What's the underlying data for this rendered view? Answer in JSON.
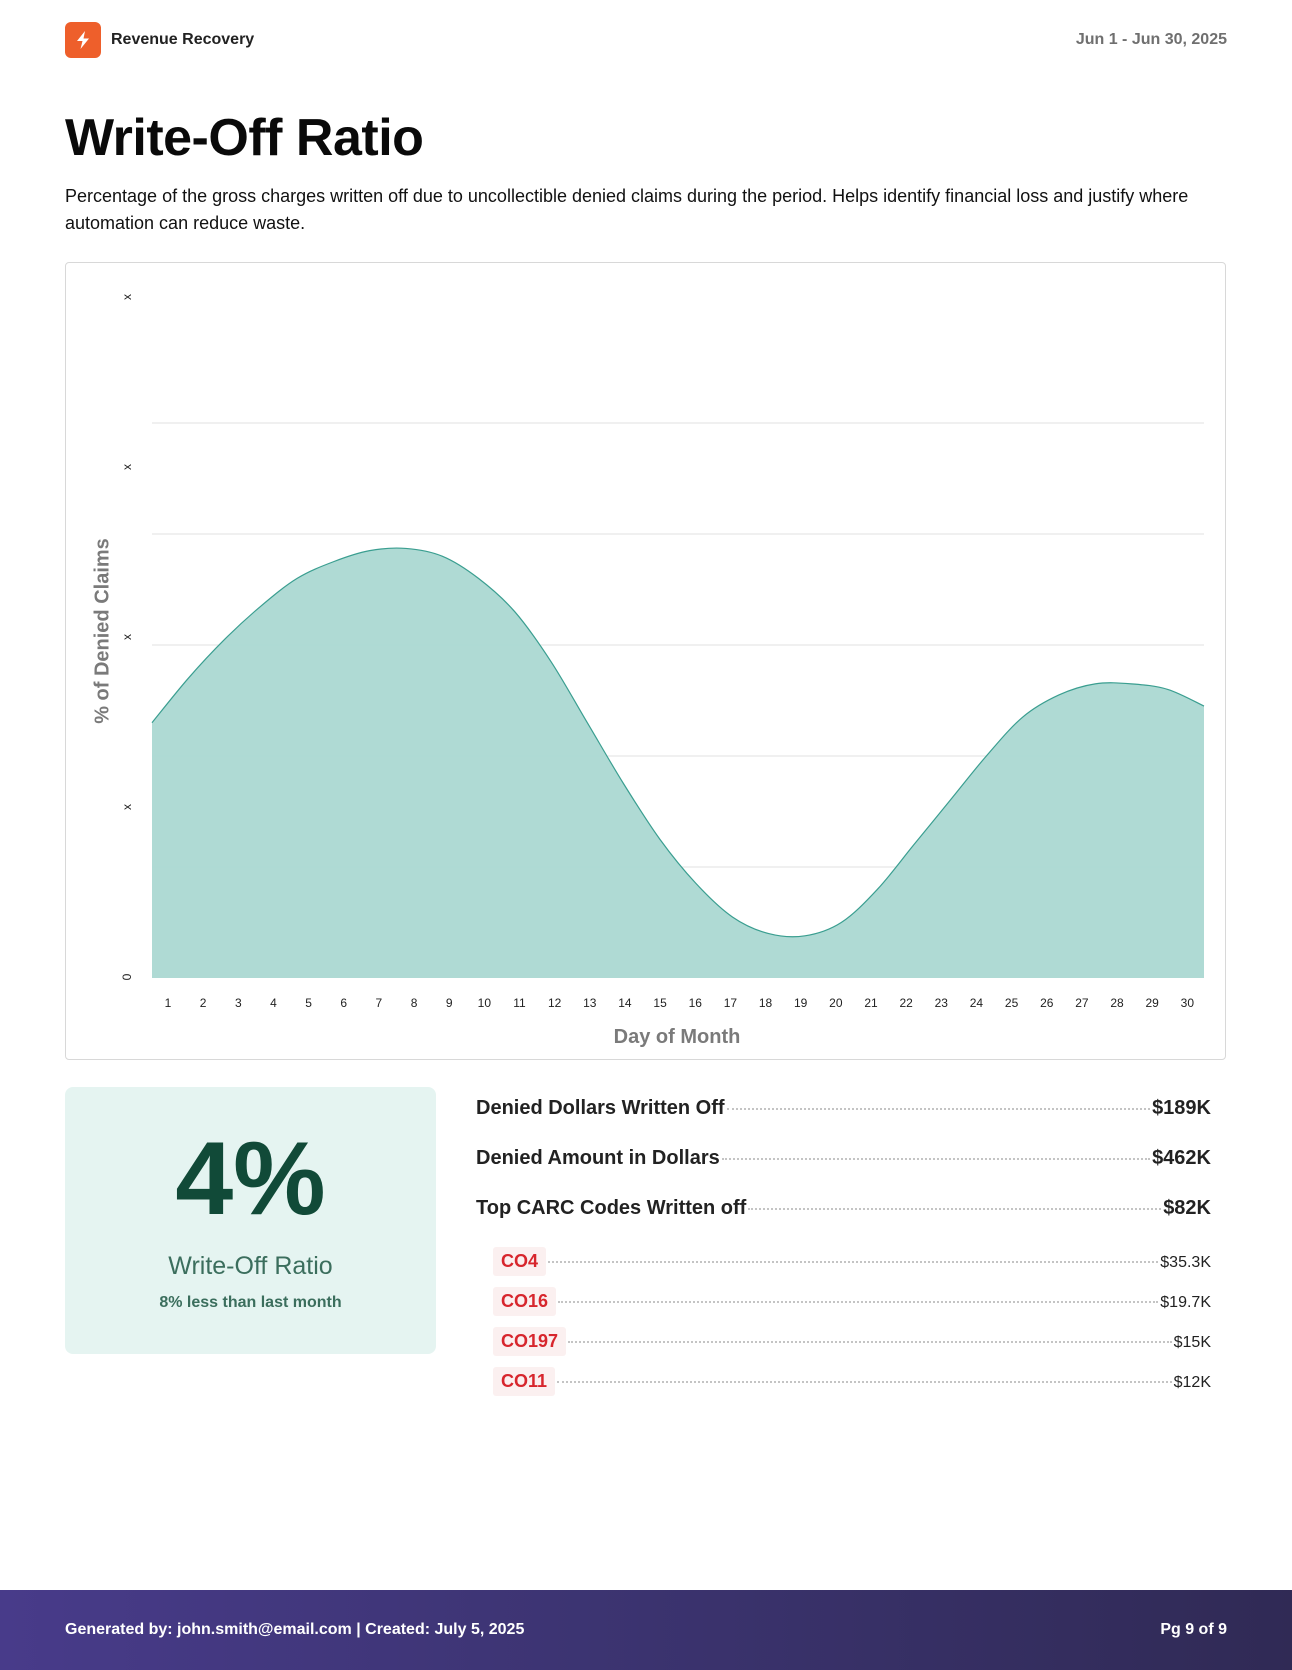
{
  "header": {
    "brand_name": "Revenue Recovery",
    "logo_icon": "lightning-bolt-icon",
    "brand_color": "#ee5f2b",
    "date_range": "Jun 1 - Jun 30, 2025"
  },
  "page": {
    "title": "Write-Off Ratio",
    "description": "Percentage of the gross charges written off due to uncollectible denied claims during the period. Helps identify financial loss and justify where automation can reduce waste."
  },
  "chart": {
    "ylabel": "% of Denied Claims",
    "xlabel": "Day of Month",
    "yticks": [
      "x",
      "x",
      "x",
      "x",
      "0"
    ],
    "xticks": [
      "1",
      "2",
      "3",
      "4",
      "5",
      "6",
      "7",
      "8",
      "9",
      "10",
      "11",
      "12",
      "13",
      "14",
      "15",
      "16",
      "17",
      "18",
      "19",
      "20",
      "21",
      "22",
      "23",
      "24",
      "25",
      "26",
      "27",
      "28",
      "29",
      "30"
    ],
    "fill_color": "#abd8d2",
    "line_color": "#3a9e90"
  },
  "chart_data": {
    "type": "area",
    "title": "",
    "xlabel": "Day of Month",
    "ylabel": "% of Denied Claims",
    "x": [
      1,
      2,
      3,
      4,
      5,
      6,
      7,
      8,
      9,
      10,
      11,
      12,
      13,
      14,
      15,
      16,
      17,
      18,
      19,
      20,
      21,
      22,
      23,
      24,
      25,
      26,
      27,
      28,
      29,
      30
    ],
    "series": [
      {
        "name": "% of Denied Claims",
        "values": [
          2.3,
          2.7,
          3.05,
          3.35,
          3.6,
          3.75,
          3.85,
          3.87,
          3.8,
          3.6,
          3.3,
          2.85,
          2.3,
          1.75,
          1.25,
          0.85,
          0.55,
          0.4,
          0.38,
          0.5,
          0.8,
          1.2,
          1.6,
          2.0,
          2.35,
          2.55,
          2.65,
          2.65,
          2.6,
          2.45
        ]
      }
    ],
    "ytick_labels": [
      "0",
      "x",
      "x",
      "x",
      "x"
    ],
    "ylim": [
      0,
      5
    ],
    "grid": true,
    "legend": "none"
  },
  "kpi": {
    "value": "4%",
    "label": "Write-Off Ratio",
    "subtext": "8% less than last month"
  },
  "stats": [
    {
      "label": "Denied Dollars Written Off",
      "value": "$189K"
    },
    {
      "label": "Denied Amount in Dollars",
      "value": "$462K"
    },
    {
      "label": "Top CARC Codes Written off",
      "value": "$82K"
    }
  ],
  "carc_codes": [
    {
      "code": "CO4",
      "value": "$35.3K"
    },
    {
      "code": "CO16",
      "value": "$19.7K"
    },
    {
      "code": "CO197",
      "value": "$15K"
    },
    {
      "code": "CO11",
      "value": "$12K"
    }
  ],
  "footer": {
    "generated": "Generated by: john.smith@email.com | Created: July 5, 2025",
    "page": "Pg 9 of 9"
  }
}
